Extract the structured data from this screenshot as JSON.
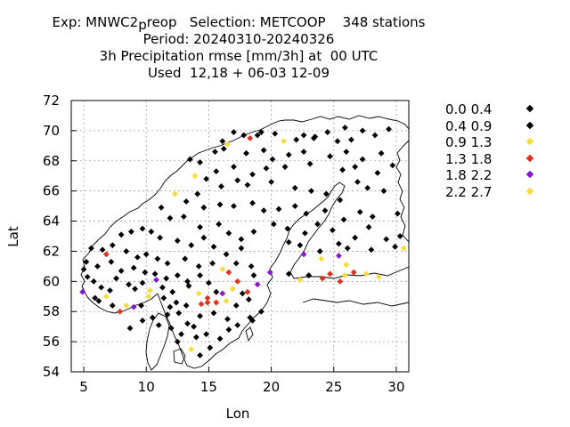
{
  "header": {
    "line1": "Exp: MNWC2_preop   Selection: METCOOP    348 stations",
    "line1_prefix": "Exp: MNWC2",
    "line1_sub": "p",
    "line1_suffix": "reop   Selection: METCOOP    348 stations",
    "line2": "Period: 20240310-20240326",
    "line3": "3h Precipitation rmse [mm/3h] at  00 UTC",
    "line4": "Used  12,18 + 06-03 12-09"
  },
  "colors": {
    "bin0": "#000000",
    "bin1": "#000000",
    "bin2": "#f5dc3c",
    "bin3": "#e0301e",
    "bin4": "#8a14d0",
    "bin5": "#f5dc3c",
    "coast": "#000000",
    "grid": "#a0a0a0"
  },
  "chart_data": {
    "type": "scatter",
    "title": "3h Precipitation rmse [mm/3h] at  00 UTC",
    "xlabel": "Lon",
    "ylabel": "Lat",
    "xlim": [
      4,
      31
    ],
    "ylim": [
      54,
      72
    ],
    "xticks": [
      5,
      10,
      15,
      20,
      25,
      30
    ],
    "yticks": [
      54,
      56,
      58,
      60,
      62,
      64,
      66,
      68,
      70,
      72
    ],
    "grid": true,
    "legend_position": "right",
    "legend": [
      {
        "label": "0.0 0.4",
        "color_key": "bin0"
      },
      {
        "label": "0.4 0.9",
        "color_key": "bin1"
      },
      {
        "label": "0.9 1.3",
        "color_key": "bin2"
      },
      {
        "label": "1.3 1.8",
        "color_key": "bin3"
      },
      {
        "label": "1.8 2.2",
        "color_key": "bin4"
      },
      {
        "label": "2.2 2.7",
        "color_key": "bin5"
      }
    ],
    "points": [
      [
        17.0,
        69.9,
        0
      ],
      [
        17.8,
        69.7,
        0
      ],
      [
        18.9,
        69.7,
        1
      ],
      [
        19.2,
        69.9,
        0
      ],
      [
        20.3,
        69.8,
        0
      ],
      [
        22.6,
        69.7,
        0
      ],
      [
        23.5,
        69.6,
        0
      ],
      [
        24.5,
        69.9,
        1
      ],
      [
        25.9,
        70.2,
        0
      ],
      [
        27.3,
        70.0,
        0
      ],
      [
        29.4,
        70.1,
        0
      ],
      [
        16.1,
        69.3,
        1
      ],
      [
        16.5,
        69.1,
        2
      ],
      [
        18.3,
        69.5,
        3
      ],
      [
        21.0,
        69.3,
        2
      ],
      [
        22.0,
        69.4,
        0
      ],
      [
        23.4,
        69.5,
        0
      ],
      [
        25.3,
        69.3,
        0
      ],
      [
        26.4,
        69.4,
        0
      ],
      [
        28.3,
        69.7,
        0
      ],
      [
        15.5,
        68.6,
        0
      ],
      [
        16.2,
        68.8,
        0
      ],
      [
        18.0,
        68.5,
        0
      ],
      [
        19.4,
        68.7,
        0
      ],
      [
        20.1,
        68.1,
        0
      ],
      [
        21.4,
        68.4,
        0
      ],
      [
        22.6,
        68.6,
        0
      ],
      [
        24.7,
        68.3,
        1
      ],
      [
        26.0,
        68.6,
        0
      ],
      [
        27.3,
        68.1,
        0
      ],
      [
        28.8,
        68.5,
        0
      ],
      [
        13.5,
        68.1,
        0
      ],
      [
        14.3,
        67.9,
        0
      ],
      [
        15.6,
        67.3,
        0
      ],
      [
        17.0,
        67.6,
        0
      ],
      [
        18.5,
        67.1,
        0
      ],
      [
        19.6,
        67.5,
        0
      ],
      [
        21.1,
        67.6,
        0
      ],
      [
        23.1,
        67.8,
        0
      ],
      [
        25.7,
        67.4,
        0
      ],
      [
        26.7,
        67.6,
        0
      ],
      [
        28.5,
        67.2,
        0
      ],
      [
        29.7,
        67.7,
        0
      ],
      [
        13.9,
        67.0,
        2
      ],
      [
        14.8,
        66.8,
        0
      ],
      [
        16.0,
        66.3,
        0
      ],
      [
        17.3,
        66.7,
        0
      ],
      [
        18.1,
        66.4,
        0
      ],
      [
        20.0,
        66.6,
        0
      ],
      [
        21.9,
        66.2,
        0
      ],
      [
        23.2,
        66.0,
        0
      ],
      [
        24.4,
        65.8,
        0
      ],
      [
        25.5,
        65.4,
        0
      ],
      [
        26.9,
        66.6,
        0
      ],
      [
        27.7,
        66.2,
        0
      ],
      [
        29.0,
        66.0,
        0
      ],
      [
        12.3,
        65.8,
        2
      ],
      [
        13.2,
        65.3,
        0
      ],
      [
        14.1,
        65.8,
        0
      ],
      [
        14.6,
        64.9,
        0
      ],
      [
        15.9,
        65.1,
        0
      ],
      [
        17.0,
        65.0,
        0
      ],
      [
        18.5,
        65.2,
        0
      ],
      [
        19.4,
        64.7,
        0
      ],
      [
        20.6,
        64.8,
        0
      ],
      [
        21.9,
        65.0,
        0
      ],
      [
        22.8,
        64.5,
        0
      ],
      [
        24.3,
        64.7,
        0
      ],
      [
        25.8,
        64.1,
        0
      ],
      [
        27.1,
        64.6,
        0
      ],
      [
        28.1,
        64.3,
        0
      ],
      [
        30.1,
        64.5,
        0
      ],
      [
        11.2,
        64.9,
        0
      ],
      [
        11.9,
        64.2,
        0
      ],
      [
        13.0,
        64.3,
        0
      ],
      [
        14.3,
        63.6,
        0
      ],
      [
        15.8,
        63.8,
        0
      ],
      [
        16.6,
        63.2,
        0
      ],
      [
        17.6,
        62.8,
        0
      ],
      [
        18.6,
        63.3,
        0
      ],
      [
        20.2,
        63.8,
        0
      ],
      [
        21.3,
        63.5,
        0
      ],
      [
        22.7,
        63.2,
        0
      ],
      [
        23.7,
        63.8,
        0
      ],
      [
        24.9,
        63.4,
        0
      ],
      [
        26.7,
        62.9,
        0
      ],
      [
        27.8,
        63.6,
        0
      ],
      [
        29.2,
        62.8,
        0
      ],
      [
        30.3,
        63.0,
        0
      ],
      [
        8.0,
        63.1,
        0
      ],
      [
        8.8,
        63.3,
        0
      ],
      [
        9.7,
        63.5,
        0
      ],
      [
        10.4,
        63.3,
        0
      ],
      [
        11.1,
        62.9,
        1
      ],
      [
        12.5,
        62.7,
        0
      ],
      [
        13.6,
        62.4,
        0
      ],
      [
        14.6,
        62.9,
        0
      ],
      [
        15.4,
        62.3,
        0
      ],
      [
        16.4,
        61.8,
        1
      ],
      [
        17.6,
        62.2,
        0
      ],
      [
        21.4,
        62.6,
        0
      ],
      [
        22.3,
        62.4,
        0
      ],
      [
        23.9,
        62.0,
        0
      ],
      [
        25.4,
        62.5,
        0
      ],
      [
        26.1,
        62.2,
        0
      ],
      [
        28.0,
        62.1,
        0
      ],
      [
        29.9,
        62.3,
        0
      ],
      [
        30.6,
        62.2,
        2
      ],
      [
        5.6,
        62.2,
        0
      ],
      [
        6.5,
        62.1,
        0
      ],
      [
        7.3,
        62.4,
        0
      ],
      [
        8.4,
        62.0,
        0
      ],
      [
        9.3,
        61.6,
        0
      ],
      [
        10.0,
        61.8,
        0
      ],
      [
        10.9,
        61.5,
        0
      ],
      [
        11.7,
        61.2,
        0
      ],
      [
        13.1,
        61.5,
        0
      ],
      [
        14.2,
        61.0,
        0
      ],
      [
        15.3,
        61.2,
        0
      ],
      [
        16.1,
        60.8,
        2
      ],
      [
        17.2,
        61.2,
        0
      ],
      [
        18.4,
        61.0,
        0
      ],
      [
        22.6,
        61.8,
        4
      ],
      [
        24.0,
        61.5,
        2
      ],
      [
        25.4,
        61.7,
        4
      ],
      [
        26.0,
        61.1,
        2
      ],
      [
        5.2,
        61.3,
        0
      ],
      [
        5.0,
        60.8,
        0
      ],
      [
        6.1,
        61.0,
        0
      ],
      [
        6.8,
        61.8,
        3
      ],
      [
        7.2,
        61.3,
        0
      ],
      [
        8.0,
        60.7,
        0
      ],
      [
        9.0,
        60.9,
        0
      ],
      [
        9.9,
        60.6,
        0
      ],
      [
        10.7,
        60.5,
        0
      ],
      [
        11.6,
        60.2,
        0
      ],
      [
        12.5,
        60.4,
        0
      ],
      [
        13.3,
        60.0,
        1
      ],
      [
        14.3,
        60.4,
        0
      ],
      [
        15.0,
        59.9,
        0
      ],
      [
        16.6,
        60.6,
        3
      ],
      [
        17.3,
        60.0,
        3
      ],
      [
        18.6,
        60.4,
        0
      ],
      [
        19.9,
        60.6,
        4
      ],
      [
        21.4,
        60.5,
        0
      ],
      [
        22.3,
        60.1,
        2
      ],
      [
        23.0,
        60.4,
        0
      ],
      [
        24.1,
        60.2,
        3
      ],
      [
        24.7,
        60.5,
        3
      ],
      [
        25.5,
        60.0,
        3
      ],
      [
        25.9,
        60.4,
        2
      ],
      [
        27.6,
        60.5,
        2
      ],
      [
        28.6,
        60.3,
        2
      ],
      [
        26.6,
        60.6,
        3
      ],
      [
        4.9,
        59.3,
        4
      ],
      [
        5.3,
        60.3,
        0
      ],
      [
        5.8,
        60.0,
        0
      ],
      [
        6.4,
        59.6,
        0
      ],
      [
        7.1,
        59.4,
        0
      ],
      [
        7.6,
        60.2,
        0
      ],
      [
        8.6,
        59.8,
        0
      ],
      [
        9.1,
        59.5,
        0
      ],
      [
        9.7,
        59.9,
        0
      ],
      [
        10.3,
        59.4,
        2
      ],
      [
        10.8,
        60.1,
        4
      ],
      [
        11.3,
        59.6,
        0
      ],
      [
        12.1,
        59.3,
        0
      ],
      [
        13.4,
        59.7,
        0
      ],
      [
        14.2,
        59.2,
        2
      ],
      [
        14.9,
        58.9,
        3
      ],
      [
        15.6,
        59.3,
        0
      ],
      [
        16.1,
        59.2,
        4
      ],
      [
        16.9,
        59.5,
        2
      ],
      [
        17.7,
        59.2,
        0
      ],
      [
        18.1,
        59.3,
        3
      ],
      [
        18.9,
        59.8,
        4
      ],
      [
        6.2,
        58.7,
        0
      ],
      [
        6.8,
        59.0,
        2
      ],
      [
        7.3,
        58.4,
        0
      ],
      [
        7.9,
        58.0,
        3
      ],
      [
        8.4,
        58.4,
        2
      ],
      [
        9.0,
        58.3,
        4
      ],
      [
        9.6,
        58.4,
        0
      ],
      [
        10.2,
        59.0,
        2
      ],
      [
        11.4,
        58.9,
        0
      ],
      [
        11.9,
        58.3,
        0
      ],
      [
        12.4,
        58.6,
        0
      ],
      [
        13.2,
        58.4,
        0
      ],
      [
        14.4,
        58.5,
        3
      ],
      [
        14.9,
        58.6,
        3
      ],
      [
        15.6,
        58.6,
        3
      ],
      [
        16.4,
        58.7,
        2
      ],
      [
        17.2,
        58.4,
        0
      ],
      [
        18.2,
        58.8,
        0
      ],
      [
        19.2,
        58.0,
        0
      ],
      [
        5.9,
        58.9,
        0
      ],
      [
        8.7,
        56.9,
        0
      ],
      [
        9.7,
        57.4,
        0
      ],
      [
        10.5,
        57.6,
        0
      ],
      [
        11.7,
        57.8,
        0
      ],
      [
        12.6,
        57.9,
        0
      ],
      [
        13.3,
        57.2,
        0
      ],
      [
        14.3,
        57.7,
        0
      ],
      [
        15.4,
        57.9,
        0
      ],
      [
        16.5,
        57.5,
        0
      ],
      [
        17.3,
        57.1,
        0
      ],
      [
        18.5,
        57.4,
        0
      ],
      [
        12.0,
        56.9,
        0
      ],
      [
        12.8,
        56.5,
        0
      ],
      [
        14.0,
        56.3,
        0
      ],
      [
        14.8,
        56.5,
        0
      ],
      [
        15.9,
        56.2,
        0
      ],
      [
        16.6,
        56.8,
        0
      ],
      [
        13.6,
        55.5,
        2
      ],
      [
        15.1,
        55.6,
        0
      ],
      [
        14.3,
        55.1,
        0
      ],
      [
        18.3,
        57.6,
        0
      ],
      [
        12.5,
        56.0,
        0
      ],
      [
        11.0,
        57.1,
        0
      ],
      [
        13.8,
        57.0,
        0
      ]
    ]
  }
}
